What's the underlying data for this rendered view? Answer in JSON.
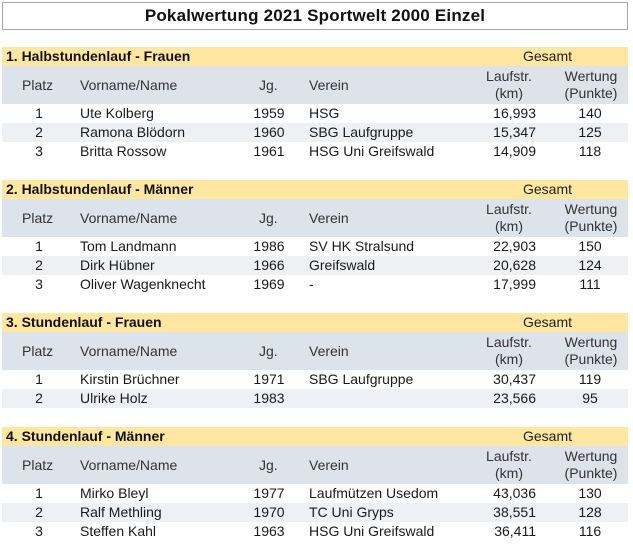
{
  "title": "Pokalwertung 2021 Sportwelt 2000 Einzel",
  "headers": {
    "platz": "Platz",
    "name": "Vorname/Name",
    "jg": "Jg.",
    "verein": "Verein",
    "lauf_1": "Laufstr.",
    "lauf_2": "(km)",
    "wert_1": "Wertung",
    "wert_2": "(Punkte)"
  },
  "gesamt_label": "Gesamt",
  "sections": [
    {
      "title": "1. Halbstundenlauf - Frauen",
      "rows": [
        {
          "platz": "1",
          "name": "Ute Kolberg",
          "jg": "1959",
          "verein": "HSG",
          "lauf": "16,993",
          "wert": "140"
        },
        {
          "platz": "2",
          "name": "Ramona Blödorn",
          "jg": "1960",
          "verein": "SBG Laufgruppe",
          "lauf": "15,347",
          "wert": "125"
        },
        {
          "platz": "3",
          "name": "Britta Rossow",
          "jg": "1961",
          "verein": "HSG Uni Greifswald",
          "lauf": "14,909",
          "wert": "118"
        }
      ]
    },
    {
      "title": "2. Halbstundenlauf - Männer",
      "rows": [
        {
          "platz": "1",
          "name": "Tom Landmann",
          "jg": "1986",
          "verein": "SV HK Stralsund",
          "lauf": "22,903",
          "wert": "150"
        },
        {
          "platz": "2",
          "name": "Dirk Hübner",
          "jg": "1966",
          "verein": "Greifswald",
          "lauf": "20,628",
          "wert": "124"
        },
        {
          "platz": "3",
          "name": "Oliver Wagenknecht",
          "jg": "1969",
          "verein": "-",
          "lauf": "17,999",
          "wert": "111"
        }
      ]
    },
    {
      "title": "3. Stundenlauf - Frauen",
      "rows": [
        {
          "platz": "1",
          "name": "Kirstin Brüchner",
          "jg": "1971",
          "verein": "SBG Laufgruppe",
          "lauf": "30,437",
          "wert": "119"
        },
        {
          "platz": "2",
          "name": "Ulrike Holz",
          "jg": "1983",
          "verein": "",
          "lauf": "23,566",
          "wert": "95"
        }
      ]
    },
    {
      "title": "4. Stundenlauf - Männer",
      "rows": [
        {
          "platz": "1",
          "name": "Mirko Bleyl",
          "jg": "1977",
          "verein": "Laufmützen Usedom",
          "lauf": "43,036",
          "wert": "130"
        },
        {
          "platz": "2",
          "name": "Ralf Methling",
          "jg": "1970",
          "verein": "TC Uni Gryps",
          "lauf": "38,551",
          "wert": "128"
        },
        {
          "platz": "3",
          "name": "Steffen Kahl",
          "jg": "1963",
          "verein": "HSG Uni Greifswald",
          "lauf": "36,411",
          "wert": "116"
        }
      ]
    }
  ]
}
